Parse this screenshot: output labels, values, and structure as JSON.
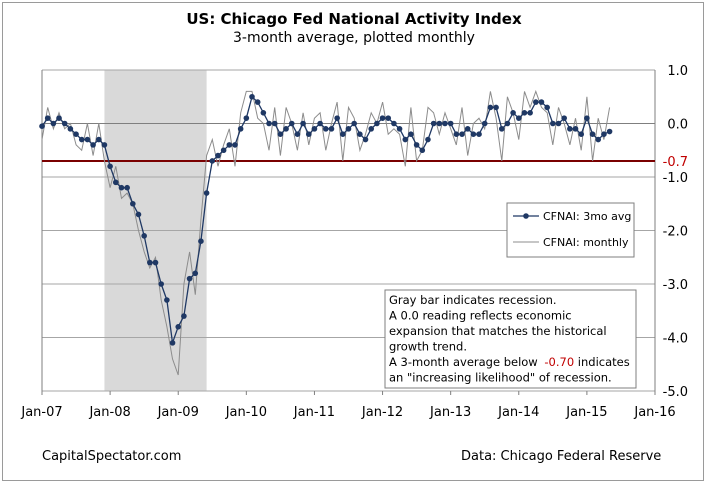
{
  "chart_data": {
    "type": "line",
    "title": "US: Chicago Fed National Activity Index",
    "subtitle": "3-month average, plotted monthly",
    "ylim": [
      -5.0,
      1.0
    ],
    "yticks": [
      "1.0",
      "0.0",
      "-1.0",
      "-2.0",
      "-3.0",
      "-4.0",
      "-5.0"
    ],
    "xticks": [
      "Jan-07",
      "Jan-08",
      "Jan-09",
      "Jan-10",
      "Jan-11",
      "Jan-12",
      "Jan-13",
      "Jan-14",
      "Jan-15",
      "Jan-16"
    ],
    "grid": "horizontal",
    "threshold": {
      "value": -0.7,
      "label": "-0.7",
      "color": "#7a0000"
    },
    "recession": {
      "start": "2007-12",
      "end": "2009-06",
      "color": "#d9d9d9"
    },
    "legend_position": "right",
    "series": [
      {
        "name": "CFNAI: 3mo avg",
        "color": "#1f3864",
        "marker": "circle",
        "x_start": "2007-01",
        "values": [
          -0.05,
          0.1,
          0.0,
          0.1,
          0.0,
          -0.1,
          -0.2,
          -0.3,
          -0.3,
          -0.4,
          -0.3,
          -0.4,
          -0.8,
          -1.1,
          -1.2,
          -1.2,
          -1.5,
          -1.7,
          -2.1,
          -2.6,
          -2.6,
          -3.0,
          -3.3,
          -4.1,
          -3.8,
          -3.6,
          -2.9,
          -2.8,
          -2.2,
          -1.3,
          -0.7,
          -0.6,
          -0.5,
          -0.4,
          -0.4,
          -0.1,
          0.1,
          0.5,
          0.4,
          0.2,
          0.0,
          0.0,
          -0.2,
          -0.1,
          0.0,
          -0.2,
          0.0,
          -0.2,
          -0.1,
          0.0,
          -0.1,
          -0.1,
          0.1,
          -0.2,
          -0.1,
          0.0,
          -0.2,
          -0.3,
          -0.1,
          0.0,
          0.1,
          0.1,
          0.0,
          -0.1,
          -0.3,
          -0.2,
          -0.4,
          -0.5,
          -0.3,
          0.0,
          0.0,
          0.0,
          0.0,
          -0.2,
          -0.2,
          -0.1,
          -0.2,
          -0.2,
          0.0,
          0.3,
          0.3,
          -0.1,
          0.0,
          0.2,
          0.1,
          0.2,
          0.2,
          0.4,
          0.4,
          0.3,
          0.0,
          0.0,
          0.1,
          -0.1,
          -0.1,
          -0.2,
          0.1,
          -0.2,
          -0.3,
          -0.2,
          -0.15
        ]
      },
      {
        "name": "CFNAI: monthly",
        "color": "#8c8c8c",
        "marker": "none",
        "x_start": "2007-01",
        "values": [
          -0.3,
          0.3,
          -0.1,
          0.2,
          -0.1,
          0.0,
          -0.4,
          -0.5,
          0.0,
          -0.6,
          0.0,
          -0.7,
          -1.2,
          -0.8,
          -1.4,
          -1.3,
          -1.5,
          -2.0,
          -2.4,
          -2.7,
          -2.5,
          -3.3,
          -3.8,
          -4.4,
          -4.7,
          -3.0,
          -2.4,
          -3.2,
          -1.8,
          -0.6,
          -0.3,
          -0.8,
          -0.4,
          -0.1,
          -0.8,
          0.2,
          0.6,
          0.6,
          0.1,
          0.0,
          -0.5,
          0.3,
          -0.6,
          0.3,
          0.0,
          -0.5,
          0.2,
          -0.4,
          0.1,
          0.2,
          -0.5,
          0.0,
          0.4,
          -0.7,
          0.3,
          0.1,
          -0.5,
          -0.2,
          0.2,
          0.0,
          0.4,
          -0.2,
          -0.1,
          -0.2,
          -0.8,
          0.3,
          -0.7,
          -0.5,
          0.3,
          0.2,
          -0.2,
          0.2,
          -0.1,
          -0.4,
          0.3,
          -0.6,
          0.0,
          0.1,
          -0.1,
          0.6,
          0.1,
          -0.7,
          0.5,
          0.2,
          -0.3,
          0.6,
          0.3,
          0.6,
          0.3,
          0.2,
          -0.4,
          0.3,
          0.0,
          -0.4,
          0.1,
          -0.5,
          0.5,
          -0.7,
          0.1,
          -0.3,
          0.3
        ]
      }
    ]
  },
  "note": {
    "lines": [
      "Gray bar indicates recession.",
      "A 0.0 reading reflects economic",
      "expansion that matches the historical",
      "growth trend.",
      "A 3-month average below  -0.70 indicates",
      "an \"increasing likelihood\" of recession."
    ],
    "line5_prefix": "A 3-month average below ",
    "line5_value": "-0.70",
    "line5_suffix": " indicates",
    "value_color": "#c00000"
  },
  "footer": {
    "left": "CapitalSpectator.com",
    "right": "Data: Chicago Federal Reserve"
  }
}
